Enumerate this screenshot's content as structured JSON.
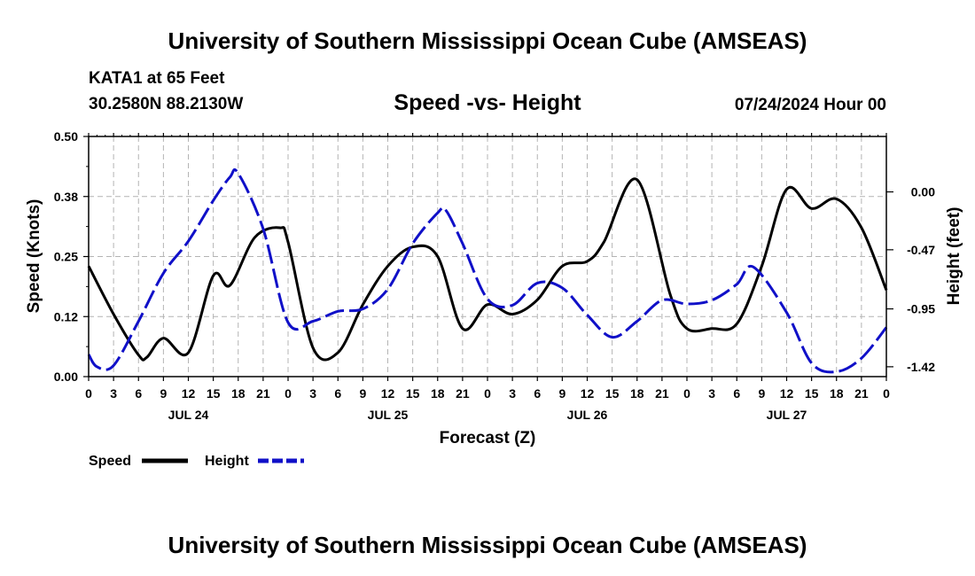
{
  "header": {
    "title": "University of Southern Mississippi Ocean Cube (AMSEAS)",
    "station": "KATA1 at 65 Feet",
    "coords": "30.2580N  88.2130W",
    "plot_title": "Speed -vs- Height",
    "datetime": "07/24/2024 Hour 00"
  },
  "footer": {
    "title": "University of Southern Mississippi Ocean Cube (AMSEAS)"
  },
  "legend": {
    "speed_label": "Speed",
    "height_label": "Height"
  },
  "chart_data": {
    "type": "line",
    "title": "Speed -vs- Height",
    "xlabel": "Forecast (Z)",
    "ylabel": "Speed (Knots)",
    "y2label": "Height (feet)",
    "xlim": [
      0,
      96
    ],
    "ylim": [
      0,
      0.5
    ],
    "y2lim": [
      -1.5,
      0.45
    ],
    "grid": true,
    "colors": {
      "speed": "#000000",
      "height": "#1010c8",
      "grid": "#b4b4b4"
    },
    "x_ticks": [
      {
        "x": 0,
        "label": "0"
      },
      {
        "x": 3,
        "label": "3"
      },
      {
        "x": 6,
        "label": "6"
      },
      {
        "x": 9,
        "label": "9"
      },
      {
        "x": 12,
        "label": "12"
      },
      {
        "x": 15,
        "label": "15"
      },
      {
        "x": 18,
        "label": "18"
      },
      {
        "x": 21,
        "label": "21"
      },
      {
        "x": 24,
        "label": "0"
      },
      {
        "x": 27,
        "label": "3"
      },
      {
        "x": 30,
        "label": "6"
      },
      {
        "x": 33,
        "label": "9"
      },
      {
        "x": 36,
        "label": "12"
      },
      {
        "x": 39,
        "label": "15"
      },
      {
        "x": 42,
        "label": "18"
      },
      {
        "x": 45,
        "label": "21"
      },
      {
        "x": 48,
        "label": "0"
      },
      {
        "x": 51,
        "label": "3"
      },
      {
        "x": 54,
        "label": "6"
      },
      {
        "x": 57,
        "label": "9"
      },
      {
        "x": 60,
        "label": "12"
      },
      {
        "x": 63,
        "label": "15"
      },
      {
        "x": 66,
        "label": "18"
      },
      {
        "x": 69,
        "label": "21"
      },
      {
        "x": 72,
        "label": "0"
      },
      {
        "x": 75,
        "label": "3"
      },
      {
        "x": 78,
        "label": "6"
      },
      {
        "x": 81,
        "label": "9"
      },
      {
        "x": 84,
        "label": "12"
      },
      {
        "x": 87,
        "label": "15"
      },
      {
        "x": 90,
        "label": "18"
      },
      {
        "x": 93,
        "label": "21"
      },
      {
        "x": 96,
        "label": "0"
      }
    ],
    "day_labels": [
      {
        "x": 12,
        "label": "JUL 24"
      },
      {
        "x": 36,
        "label": "JUL 25"
      },
      {
        "x": 60,
        "label": "JUL 26"
      },
      {
        "x": 84,
        "label": "JUL 27"
      }
    ],
    "y_ticks": [
      {
        "v": 0.0,
        "label": "0.00"
      },
      {
        "v": 0.125,
        "label": "0.12"
      },
      {
        "v": 0.25,
        "label": "0.25"
      },
      {
        "v": 0.375,
        "label": "0.38"
      },
      {
        "v": 0.5,
        "label": "0.50"
      }
    ],
    "y2_ticks": [
      {
        "v": 0.0,
        "label": "0.00"
      },
      {
        "v": -0.47,
        "label": "-0.47"
      },
      {
        "v": -0.95,
        "label": "-0.95"
      },
      {
        "v": -1.42,
        "label": "-1.42"
      }
    ],
    "series": [
      {
        "name": "Speed",
        "axis": "left",
        "style": "solid",
        "x": [
          0,
          3,
          6,
          7,
          9,
          12,
          15,
          17,
          20,
          23,
          24,
          27,
          30,
          33,
          36,
          39,
          42,
          45,
          48,
          51,
          54,
          57,
          60,
          62,
          66,
          70,
          72,
          75,
          78,
          81,
          84,
          87,
          90,
          93,
          96
        ],
        "values": [
          0.23,
          0.13,
          0.045,
          0.04,
          0.08,
          0.05,
          0.21,
          0.19,
          0.29,
          0.31,
          0.28,
          0.06,
          0.05,
          0.15,
          0.23,
          0.27,
          0.25,
          0.1,
          0.15,
          0.13,
          0.16,
          0.23,
          0.24,
          0.28,
          0.41,
          0.17,
          0.1,
          0.1,
          0.11,
          0.23,
          0.39,
          0.35,
          0.37,
          0.31,
          0.18
        ]
      },
      {
        "name": "Height",
        "axis": "right",
        "style": "dashed",
        "x": [
          0,
          1,
          3,
          6,
          9,
          12,
          15,
          17,
          18,
          21,
          24,
          27,
          30,
          33,
          36,
          39,
          42,
          43,
          45,
          48,
          51,
          54,
          57,
          60,
          63,
          66,
          69,
          72,
          75,
          78,
          80,
          84,
          87,
          90,
          93,
          96
        ],
        "values": [
          -1.32,
          -1.42,
          -1.41,
          -1.05,
          -0.66,
          -0.4,
          -0.07,
          0.12,
          0.15,
          -0.3,
          -1.06,
          -1.05,
          -0.97,
          -0.95,
          -0.79,
          -0.42,
          -0.17,
          -0.15,
          -0.42,
          -0.87,
          -0.92,
          -0.74,
          -0.78,
          -1.0,
          -1.18,
          -1.05,
          -0.88,
          -0.91,
          -0.88,
          -0.75,
          -0.61,
          -0.98,
          -1.39,
          -1.46,
          -1.35,
          -1.1
        ]
      }
    ]
  }
}
